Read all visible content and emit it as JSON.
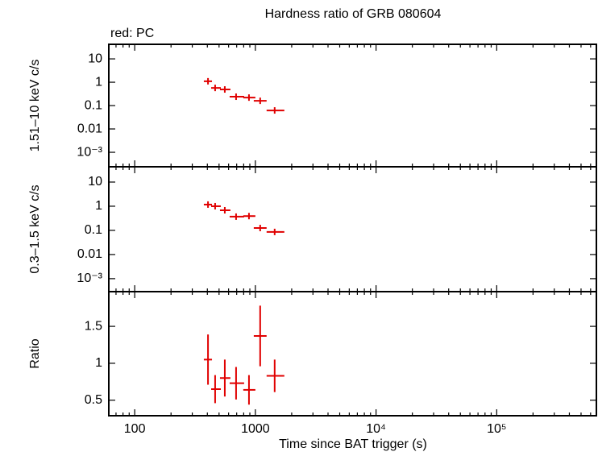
{
  "chart_data": [
    {
      "type": "errorbar",
      "title": "Hardness ratio of GRB 080604",
      "annotation": "red: PC",
      "ylabel": "1.51–10 keV c/s",
      "xlog": true,
      "ylog": true,
      "color": "#e00000",
      "xlim": [
        61,
        670000
      ],
      "xticks": [
        100,
        1000,
        {
          "value": 10000,
          "label": "10⁴"
        },
        {
          "value": 100000,
          "label": "10⁵"
        }
      ],
      "ylim": [
        0.00024,
        42
      ],
      "yticks": [
        10,
        1,
        0.1,
        0.01,
        {
          "value": 0.001,
          "label": "10⁻³"
        }
      ],
      "x": [
        405,
        464,
        558,
        692,
        885,
        1096,
        1445
      ],
      "x_lo": [
        374,
        430,
        509,
        612,
        794,
        970,
        1239
      ],
      "x_hi": [
        437,
        517,
        621,
        807,
        1000,
        1239,
        1738
      ],
      "values": [
        1.1,
        0.57,
        0.49,
        0.24,
        0.22,
        0.16,
        0.062
      ]
    },
    {
      "type": "errorbar",
      "ylabel": "0.3–1.5 keV c/s",
      "xlog": true,
      "ylog": true,
      "color": "#e00000",
      "xlim": [
        61,
        670000
      ],
      "xticks": [
        100,
        1000,
        10000,
        100000
      ],
      "ylim": [
        0.00029,
        43
      ],
      "yticks": [
        10,
        1,
        0.1,
        0.01,
        {
          "value": 0.001,
          "label": "10⁻³"
        }
      ],
      "x": [
        405,
        464,
        558,
        692,
        885,
        1096,
        1445
      ],
      "x_lo": [
        374,
        430,
        509,
        612,
        794,
        970,
        1239
      ],
      "x_hi": [
        437,
        517,
        621,
        807,
        1000,
        1239,
        1738
      ],
      "values": [
        1.17,
        1.0,
        0.68,
        0.37,
        0.39,
        0.125,
        0.086
      ]
    },
    {
      "type": "errorbar",
      "ylabel": "Ratio",
      "xlabel": "Time since BAT trigger (s)",
      "xlog": true,
      "ylog": false,
      "color": "#e00000",
      "show_xtick_labels": true,
      "xlim": [
        61,
        670000
      ],
      "xticks": [
        100,
        1000,
        {
          "value": 10000,
          "label": "10⁴"
        },
        {
          "value": 100000,
          "label": "10⁵"
        }
      ],
      "ylim": [
        0.29,
        1.97
      ],
      "yticks": [
        1.5,
        1,
        0.5
      ],
      "x": [
        405,
        464,
        558,
        692,
        885,
        1096,
        1445
      ],
      "x_lo": [
        374,
        430,
        509,
        612,
        794,
        970,
        1239
      ],
      "x_hi": [
        437,
        517,
        621,
        807,
        1000,
        1239,
        1738
      ],
      "values": [
        1.05,
        0.65,
        0.8,
        0.73,
        0.64,
        1.37,
        0.83
      ],
      "yerr": [
        0.34,
        0.19,
        0.25,
        0.22,
        0.2,
        0.41,
        0.22
      ]
    }
  ]
}
